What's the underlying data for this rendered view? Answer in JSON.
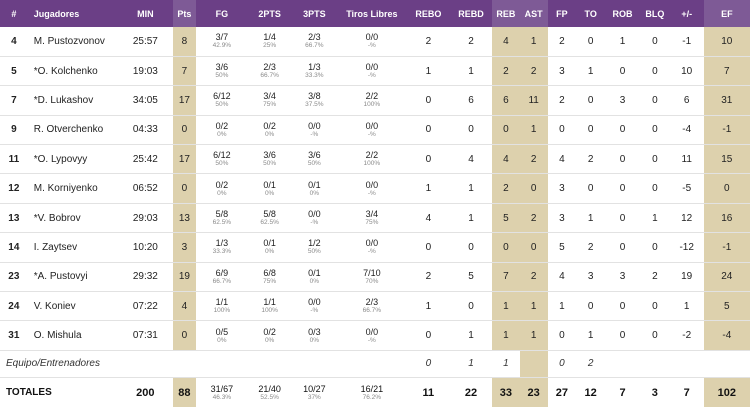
{
  "headers": {
    "num": "#",
    "player": "Jugadores",
    "min": "MIN",
    "pts": "Pts",
    "fg": "FG",
    "pt2": "2PTS",
    "pt3": "3PTS",
    "ft": "Tiros Libres",
    "rebo": "REBO",
    "rebd": "REBD",
    "reb": "REB",
    "ast": "AST",
    "fp": "FP",
    "to": "TO",
    "rob": "ROB",
    "blq": "BLQ",
    "pm": "+/-",
    "ef": "EF"
  },
  "players": [
    {
      "num": "4",
      "name": "M. Pustozvonov",
      "min": "25:57",
      "pts": "8",
      "fg": "3/7",
      "fg_pct": "42.9%",
      "p2": "1/4",
      "p2_pct": "25%",
      "p3": "2/3",
      "p3_pct": "66.7%",
      "ft": "0/0",
      "ft_pct": "-%",
      "rebo": "2",
      "rebd": "2",
      "reb": "4",
      "ast": "1",
      "fp": "2",
      "to": "0",
      "rob": "1",
      "blq": "0",
      "pm": "-1",
      "ef": "10"
    },
    {
      "num": "5",
      "name": "*O. Kolchenko",
      "min": "19:03",
      "pts": "7",
      "fg": "3/6",
      "fg_pct": "50%",
      "p2": "2/3",
      "p2_pct": "66.7%",
      "p3": "1/3",
      "p3_pct": "33.3%",
      "ft": "0/0",
      "ft_pct": "-%",
      "rebo": "1",
      "rebd": "1",
      "reb": "2",
      "ast": "2",
      "fp": "3",
      "to": "1",
      "rob": "0",
      "blq": "0",
      "pm": "10",
      "ef": "7"
    },
    {
      "num": "7",
      "name": "*D. Lukashov",
      "min": "34:05",
      "pts": "17",
      "fg": "6/12",
      "fg_pct": "50%",
      "p2": "3/4",
      "p2_pct": "75%",
      "p3": "3/8",
      "p3_pct": "37.5%",
      "ft": "2/2",
      "ft_pct": "100%",
      "rebo": "0",
      "rebd": "6",
      "reb": "6",
      "ast": "11",
      "fp": "2",
      "to": "0",
      "rob": "3",
      "blq": "0",
      "pm": "6",
      "ef": "31"
    },
    {
      "num": "9",
      "name": "R. Otverchenko",
      "min": "04:33",
      "pts": "0",
      "fg": "0/2",
      "fg_pct": "0%",
      "p2": "0/2",
      "p2_pct": "0%",
      "p3": "0/0",
      "p3_pct": "-%",
      "ft": "0/0",
      "ft_pct": "-%",
      "rebo": "0",
      "rebd": "0",
      "reb": "0",
      "ast": "1",
      "fp": "0",
      "to": "0",
      "rob": "0",
      "blq": "0",
      "pm": "-4",
      "ef": "-1"
    },
    {
      "num": "11",
      "name": "*O. Lypovyy",
      "min": "25:42",
      "pts": "17",
      "fg": "6/12",
      "fg_pct": "50%",
      "p2": "3/6",
      "p2_pct": "50%",
      "p3": "3/6",
      "p3_pct": "50%",
      "ft": "2/2",
      "ft_pct": "100%",
      "rebo": "0",
      "rebd": "4",
      "reb": "4",
      "ast": "2",
      "fp": "4",
      "to": "2",
      "rob": "0",
      "blq": "0",
      "pm": "11",
      "ef": "15"
    },
    {
      "num": "12",
      "name": "M. Korniyenko",
      "min": "06:52",
      "pts": "0",
      "fg": "0/2",
      "fg_pct": "0%",
      "p2": "0/1",
      "p2_pct": "0%",
      "p3": "0/1",
      "p3_pct": "0%",
      "ft": "0/0",
      "ft_pct": "-%",
      "rebo": "1",
      "rebd": "1",
      "reb": "2",
      "ast": "0",
      "fp": "3",
      "to": "0",
      "rob": "0",
      "blq": "0",
      "pm": "-5",
      "ef": "0"
    },
    {
      "num": "13",
      "name": "*V. Bobrov",
      "min": "29:03",
      "pts": "13",
      "fg": "5/8",
      "fg_pct": "62.5%",
      "p2": "5/8",
      "p2_pct": "62.5%",
      "p3": "0/0",
      "p3_pct": "-%",
      "ft": "3/4",
      "ft_pct": "75%",
      "rebo": "4",
      "rebd": "1",
      "reb": "5",
      "ast": "2",
      "fp": "3",
      "to": "1",
      "rob": "0",
      "blq": "1",
      "pm": "12",
      "ef": "16"
    },
    {
      "num": "14",
      "name": "I. Zaytsev",
      "min": "10:20",
      "pts": "3",
      "fg": "1/3",
      "fg_pct": "33.3%",
      "p2": "0/1",
      "p2_pct": "0%",
      "p3": "1/2",
      "p3_pct": "50%",
      "ft": "0/0",
      "ft_pct": "-%",
      "rebo": "0",
      "rebd": "0",
      "reb": "0",
      "ast": "0",
      "fp": "5",
      "to": "2",
      "rob": "0",
      "blq": "0",
      "pm": "-12",
      "ef": "-1"
    },
    {
      "num": "23",
      "name": "*A. Pustovyi",
      "min": "29:32",
      "pts": "19",
      "fg": "6/9",
      "fg_pct": "66.7%",
      "p2": "6/8",
      "p2_pct": "75%",
      "p3": "0/1",
      "p3_pct": "0%",
      "ft": "7/10",
      "ft_pct": "70%",
      "rebo": "2",
      "rebd": "5",
      "reb": "7",
      "ast": "2",
      "fp": "4",
      "to": "3",
      "rob": "3",
      "blq": "2",
      "pm": "19",
      "ef": "24"
    },
    {
      "num": "24",
      "name": "V. Koniev",
      "min": "07:22",
      "pts": "4",
      "fg": "1/1",
      "fg_pct": "100%",
      "p2": "1/1",
      "p2_pct": "100%",
      "p3": "0/0",
      "p3_pct": "-%",
      "ft": "2/3",
      "ft_pct": "66.7%",
      "rebo": "1",
      "rebd": "0",
      "reb": "1",
      "ast": "1",
      "fp": "1",
      "to": "0",
      "rob": "0",
      "blq": "0",
      "pm": "1",
      "ef": "5"
    },
    {
      "num": "31",
      "name": "O. Mishula",
      "min": "07:31",
      "pts": "0",
      "fg": "0/5",
      "fg_pct": "0%",
      "p2": "0/2",
      "p2_pct": "0%",
      "p3": "0/3",
      "p3_pct": "0%",
      "ft": "0/0",
      "ft_pct": "-%",
      "rebo": "0",
      "rebd": "1",
      "reb": "1",
      "ast": "1",
      "fp": "0",
      "to": "1",
      "rob": "0",
      "blq": "0",
      "pm": "-2",
      "ef": "-4"
    }
  ],
  "team": {
    "label": "Equipo/Entrenadores",
    "rebo": "0",
    "rebd": "1",
    "reb": "1",
    "fp": "0",
    "to": "2"
  },
  "totals": {
    "label": "TOTALES",
    "min": "200",
    "pts": "88",
    "fg": "31/67",
    "fg_pct": "46.3%",
    "p2": "21/40",
    "p2_pct": "52.5%",
    "p3": "10/27",
    "p3_pct": "37%",
    "ft": "16/21",
    "ft_pct": "76.2%",
    "rebo": "11",
    "rebd": "22",
    "reb": "33",
    "ast": "23",
    "fp": "27",
    "to": "12",
    "rob": "7",
    "blq": "3",
    "pm": "7",
    "ef": "102"
  },
  "colors": {
    "header_bg": "#6b3f86",
    "header_highlight": "#7e5a96",
    "highlight_col": "#ddd1ad"
  }
}
